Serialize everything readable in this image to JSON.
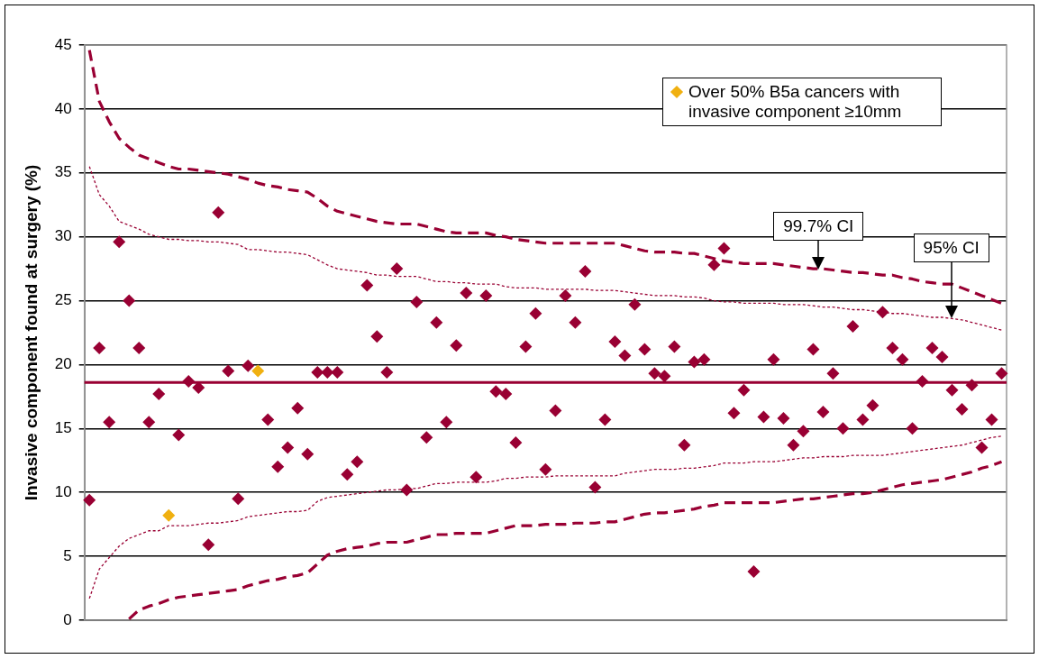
{
  "chart_data": {
    "type": "scatter",
    "ylabel": "Invasive component found at surgery (%)",
    "categories": [
      null,
      null,
      null,
      null,
      null,
      null,
      null,
      null,
      null,
      null,
      null,
      null,
      null,
      null,
      null,
      null,
      null,
      null,
      null,
      null,
      null,
      null,
      null,
      null,
      null,
      null,
      null,
      null,
      null,
      null,
      null,
      null,
      null,
      null,
      null,
      null,
      null,
      null,
      null,
      null,
      null,
      null,
      null,
      null,
      null,
      null,
      null,
      null,
      null,
      null,
      null,
      null,
      null,
      null,
      null,
      null,
      null,
      null,
      null,
      null,
      null,
      null,
      null,
      null,
      null,
      null,
      null,
      null,
      null,
      null,
      null,
      null,
      null,
      null,
      null,
      null,
      null,
      null,
      null,
      null,
      null,
      null,
      null,
      null,
      null,
      null,
      null,
      null,
      null,
      null,
      null,
      null,
      null
    ],
    "ylim": [
      0,
      45
    ],
    "yticks": [
      0,
      5,
      10,
      15,
      20,
      25,
      30,
      35,
      40,
      45
    ],
    "grid": "y",
    "tick_labels": "y",
    "legend": "top right",
    "series": [
      {
        "type": "line",
        "marker": "none",
        "line_style": "dashed",
        "color": "#990033",
        "values": [
          44.6,
          40.6,
          39.0,
          37.7,
          37.0,
          36.4,
          36.1,
          35.8,
          35.5,
          35.3,
          35.3,
          35.2,
          35.1,
          35.0,
          34.9,
          34.7,
          34.5,
          34.2,
          34.0,
          33.9,
          33.7,
          33.6,
          33.5,
          33.0,
          32.4,
          32.0,
          31.8,
          31.6,
          31.4,
          31.2,
          31.1,
          31.0,
          31.0,
          31.0,
          30.8,
          30.6,
          30.4,
          30.3,
          30.3,
          30.3,
          30.3,
          30.1,
          30.0,
          29.8,
          29.7,
          29.6,
          29.5,
          29.5,
          29.5,
          29.5,
          29.5,
          29.5,
          29.5,
          29.5,
          29.3,
          29.1,
          28.9,
          28.8,
          28.8,
          28.8,
          28.7,
          28.7,
          28.5,
          28.3,
          28.1,
          28.0,
          27.9,
          27.9,
          27.9,
          27.9,
          27.8,
          27.7,
          27.6,
          27.5,
          27.5,
          27.4,
          27.3,
          27.2,
          27.2,
          27.1,
          27.0,
          27.0,
          26.8,
          26.7,
          26.5,
          26.4,
          26.3,
          26.3,
          26.0,
          25.7,
          25.4,
          25.1,
          24.8
        ]
      },
      {
        "type": "line",
        "marker": "none",
        "line_style": "dotted",
        "color": "#990033",
        "values": [
          35.5,
          33.3,
          32.4,
          31.2,
          30.9,
          30.6,
          30.2,
          30.0,
          29.8,
          29.8,
          29.7,
          29.7,
          29.6,
          29.6,
          29.5,
          29.4,
          29.0,
          29.0,
          28.9,
          28.8,
          28.8,
          28.7,
          28.6,
          28.2,
          27.8,
          27.5,
          27.4,
          27.3,
          27.2,
          27.0,
          27.0,
          26.9,
          26.9,
          26.9,
          26.7,
          26.5,
          26.5,
          26.4,
          26.4,
          26.3,
          26.3,
          26.3,
          26.1,
          26.0,
          26.0,
          26.0,
          25.9,
          25.9,
          25.9,
          25.9,
          25.9,
          25.8,
          25.8,
          25.8,
          25.7,
          25.6,
          25.5,
          25.4,
          25.4,
          25.4,
          25.3,
          25.3,
          25.2,
          25.0,
          24.9,
          24.9,
          24.8,
          24.8,
          24.8,
          24.8,
          24.7,
          24.7,
          24.7,
          24.6,
          24.5,
          24.5,
          24.4,
          24.3,
          24.3,
          24.2,
          24.1,
          24.0,
          24.0,
          23.9,
          23.8,
          23.7,
          23.7,
          23.6,
          23.5,
          23.3,
          23.1,
          22.9,
          22.7
        ]
      },
      {
        "type": "line",
        "marker": "none",
        "line_style": "dotted",
        "color": "#990033",
        "values": [
          1.7,
          4.0,
          4.9,
          5.8,
          6.4,
          6.7,
          7.0,
          7.0,
          7.4,
          7.4,
          7.4,
          7.5,
          7.6,
          7.6,
          7.7,
          7.8,
          8.1,
          8.2,
          8.3,
          8.4,
          8.5,
          8.5,
          8.6,
          9.3,
          9.6,
          9.7,
          9.8,
          9.9,
          10.0,
          10.1,
          10.2,
          10.2,
          10.3,
          10.3,
          10.5,
          10.7,
          10.7,
          10.8,
          10.8,
          10.8,
          10.8,
          10.9,
          11.1,
          11.1,
          11.2,
          11.2,
          11.2,
          11.3,
          11.3,
          11.3,
          11.3,
          11.3,
          11.3,
          11.3,
          11.5,
          11.6,
          11.7,
          11.8,
          11.8,
          11.8,
          11.9,
          11.9,
          12.0,
          12.1,
          12.3,
          12.3,
          12.3,
          12.4,
          12.4,
          12.4,
          12.5,
          12.6,
          12.7,
          12.7,
          12.8,
          12.8,
          12.8,
          12.9,
          12.9,
          12.9,
          12.9,
          13.0,
          13.1,
          13.2,
          13.3,
          13.4,
          13.5,
          13.6,
          13.7,
          13.9,
          14.1,
          14.3,
          14.4
        ]
      },
      {
        "type": "line",
        "marker": "none",
        "line_style": "dashed",
        "color": "#990033",
        "values": [
          null,
          null,
          null,
          null,
          0.1,
          0.8,
          1.1,
          1.3,
          1.6,
          1.8,
          1.9,
          2.0,
          2.1,
          2.2,
          2.3,
          2.4,
          2.7,
          2.9,
          3.1,
          3.2,
          3.4,
          3.5,
          3.7,
          4.4,
          5.1,
          5.4,
          5.6,
          5.7,
          5.8,
          6.0,
          6.1,
          6.1,
          6.1,
          6.3,
          6.5,
          6.7,
          6.7,
          6.8,
          6.8,
          6.8,
          6.8,
          7.0,
          7.2,
          7.4,
          7.4,
          7.4,
          7.5,
          7.5,
          7.5,
          7.6,
          7.6,
          7.6,
          7.7,
          7.7,
          7.9,
          8.1,
          8.3,
          8.4,
          8.4,
          8.5,
          8.6,
          8.7,
          8.9,
          9.0,
          9.2,
          9.2,
          9.2,
          9.2,
          9.2,
          9.2,
          9.3,
          9.4,
          9.5,
          9.5,
          9.6,
          9.7,
          9.8,
          9.9,
          9.9,
          10.0,
          10.2,
          10.4,
          10.6,
          10.7,
          10.8,
          10.9,
          11.0,
          11.2,
          11.4,
          11.6,
          11.9,
          12.1,
          12.4
        ]
      },
      {
        "marker": "diamond",
        "color": "#990033",
        "values": [
          9.4,
          21.3,
          15.5,
          29.6,
          25.0,
          21.3,
          15.5,
          17.7,
          null,
          14.5,
          18.7,
          18.2,
          null,
          null,
          19.5,
          9.5,
          19.9,
          null,
          15.7,
          12.0,
          13.5,
          16.6,
          13.0,
          19.4,
          19.4,
          19.4,
          11.4,
          12.4,
          26.2,
          22.2,
          19.4,
          null,
          null,
          24.9,
          14.3,
          23.3,
          15.5,
          21.5,
          25.6,
          11.2,
          25.4,
          17.9,
          17.7,
          13.9,
          21.4,
          24.0,
          11.8,
          16.4,
          25.4,
          23.3,
          null,
          null,
          15.7,
          21.8,
          20.7,
          24.7,
          21.2,
          19.3,
          19.1,
          21.4,
          13.7,
          20.2,
          20.4,
          null,
          null,
          16.2,
          18.0,
          null,
          15.9,
          20.4,
          15.8,
          13.7,
          14.8,
          21.2,
          16.3,
          19.3,
          15.0,
          23.0,
          15.7,
          16.8,
          24.1,
          21.3,
          20.4,
          15.0,
          18.7,
          21.3,
          20.6,
          18.0,
          16.5,
          18.4,
          null,
          15.7,
          19.3
        ]
      },
      {
        "marker": "diamond",
        "color": "#990033",
        "values": [
          null,
          null,
          null,
          null,
          null,
          null,
          null,
          null,
          null,
          null,
          null,
          null,
          5.9,
          31.9,
          null,
          null,
          null,
          null,
          null,
          null,
          null,
          null,
          null,
          null,
          null,
          null,
          null,
          null,
          null,
          null,
          null,
          27.5,
          10.2,
          null,
          null,
          null,
          null,
          null,
          null,
          null,
          null,
          null,
          null,
          null,
          null,
          null,
          null,
          null,
          null,
          null,
          27.3,
          10.4,
          null,
          null,
          null,
          null,
          null,
          null,
          null,
          null,
          null,
          null,
          null,
          27.8,
          29.1,
          null,
          null,
          3.8,
          null,
          null,
          null,
          null,
          null,
          null,
          null,
          null,
          null,
          null,
          null,
          null,
          null,
          null,
          null,
          null,
          null,
          null,
          null,
          null,
          null,
          null,
          13.5,
          null,
          null
        ]
      },
      {
        "marker": "diamond",
        "name": "Over 50% B5a cancers with invasive component ≥10mm",
        "color": "#f0b010",
        "values": [
          null,
          null,
          null,
          null,
          null,
          null,
          null,
          null,
          8.2,
          null,
          null,
          null,
          null,
          null,
          null,
          null,
          null,
          19.5,
          null,
          null,
          null,
          null,
          null,
          null,
          null,
          null,
          null,
          null,
          null,
          null,
          null,
          null,
          null,
          null,
          null,
          null,
          null,
          null,
          null,
          null,
          null,
          null,
          null,
          null,
          null,
          null,
          null,
          null,
          null,
          null,
          null,
          null,
          null,
          null,
          null,
          null,
          null,
          null,
          null,
          null,
          null,
          null,
          null,
          null,
          null,
          null,
          null,
          null,
          null,
          null,
          null,
          null,
          null,
          null,
          null,
          null,
          null,
          null,
          null,
          null,
          null,
          null,
          null,
          null,
          null,
          null,
          null,
          null,
          null,
          null,
          null,
          null,
          null
        ]
      }
    ],
    "ref_lines": [
      {
        "axis": "y",
        "value": 18.6,
        "color": "#990033",
        "line_style": "solid"
      }
    ],
    "annotations": [
      "99.7% CI",
      "95% CI"
    ]
  }
}
